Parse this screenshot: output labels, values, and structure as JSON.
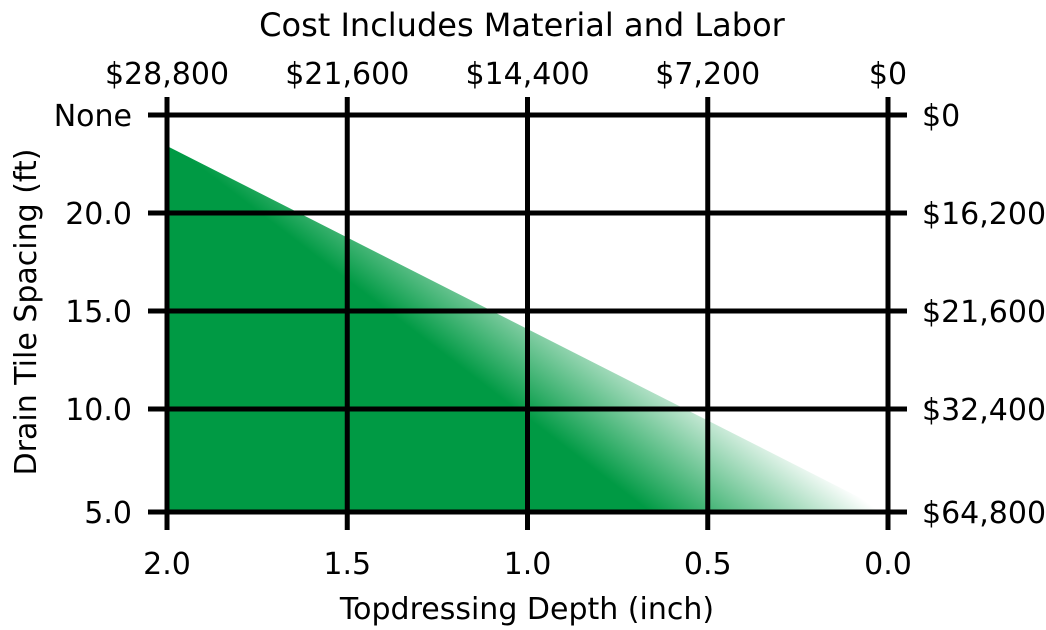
{
  "chart_data": {
    "type": "area",
    "title": "Cost Includes Material and Labor",
    "xlabel": "Topdressing Depth (inch)",
    "ylabel": "Drain Tile Spacing (ft)",
    "x_ticks": [
      {
        "value": 2.0,
        "label": "2.0"
      },
      {
        "value": 1.5,
        "label": "1.5"
      },
      {
        "value": 1.0,
        "label": "1.0"
      },
      {
        "value": 0.5,
        "label": "0.5"
      },
      {
        "value": 0.0,
        "label": "0.0"
      }
    ],
    "x_top_ticks": [
      {
        "value": 2.0,
        "label": "$28,800"
      },
      {
        "value": 1.5,
        "label": "$21,600"
      },
      {
        "value": 1.0,
        "label": "$14,400"
      },
      {
        "value": 0.5,
        "label": "$7,200"
      },
      {
        "value": 0.0,
        "label": "$0"
      }
    ],
    "y_ticks": [
      {
        "label": "None",
        "cost_label": "$0"
      },
      {
        "label": "20.0",
        "cost_label": "$16,200"
      },
      {
        "label": "15.0",
        "cost_label": "$21,600"
      },
      {
        "label": "10.0",
        "cost_label": "$32,400"
      },
      {
        "label": "5.0",
        "cost_label": "$64,800"
      }
    ],
    "xlim": [
      2.0,
      0.0
    ],
    "area": {
      "x": [
        2.0,
        0.0
      ],
      "y_top": [
        23.5,
        5.0
      ],
      "y_bottom": 5.0
    },
    "grid": true,
    "colors": {
      "fill_dark": "#009a44",
      "fill_light": "#ffffff",
      "grid": "#000000"
    }
  }
}
